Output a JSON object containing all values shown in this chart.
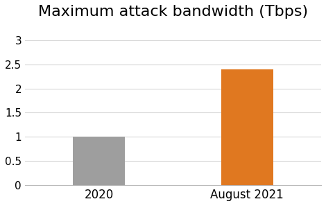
{
  "categories": [
    "2020",
    "August 2021"
  ],
  "values": [
    1.0,
    2.4
  ],
  "bar_colors": [
    "#9e9e9e",
    "#e07820"
  ],
  "title": "Maximum attack bandwidth (Tbps)",
  "title_fontsize": 16,
  "title_fontweight": "normal",
  "ylim": [
    0,
    3.3
  ],
  "yticks": [
    0,
    0.5,
    1.0,
    1.5,
    2.0,
    2.5,
    3.0
  ],
  "ytick_labels": [
    "0",
    "0.5",
    "1",
    "1.5",
    "2",
    "2.5",
    "3"
  ],
  "tick_fontsize": 11,
  "xlabel_fontsize": 12,
  "background_color": "#ffffff",
  "grid_color": "#d9d9d9",
  "bar_width": 0.35
}
